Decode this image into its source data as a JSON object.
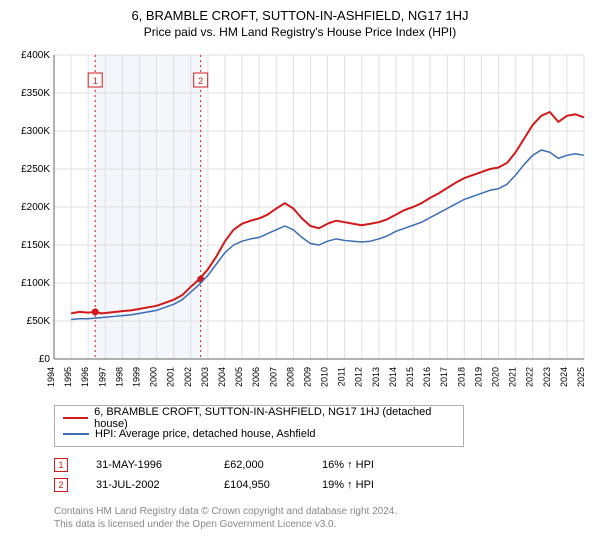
{
  "title": "6, BRAMBLE CROFT, SUTTON-IN-ASHFIELD, NG17 1HJ",
  "subtitle": "Price paid vs. HM Land Registry's House Price Index (HPI)",
  "chart": {
    "type": "line",
    "background_color": "#ffffff",
    "grid_color": "#e0e0e0",
    "axis_color": "#666666",
    "band_fill": "#f3f6fb",
    "ylabel_prefix": "£",
    "ylabel_suffix": "K",
    "ylim": [
      0,
      400
    ],
    "ytick_step": 50,
    "x_start": 1994,
    "x_end": 2025,
    "xtick_step": 1,
    "xtick_fontsize": 9,
    "ytick_fontsize": 10,
    "series": [
      {
        "name": "property",
        "label": "6, BRAMBLE CROFT, SUTTON-IN-ASHFIELD, NG17 1HJ (detached house)",
        "color": "#d11919",
        "width": 2,
        "points": [
          [
            1995.0,
            60
          ],
          [
            1995.5,
            62
          ],
          [
            1996.0,
            61
          ],
          [
            1996.4,
            62
          ],
          [
            1996.8,
            60
          ],
          [
            1997.2,
            61
          ],
          [
            1997.6,
            62
          ],
          [
            1998.0,
            63
          ],
          [
            1998.5,
            64
          ],
          [
            1999.0,
            66
          ],
          [
            1999.5,
            68
          ],
          [
            2000.0,
            70
          ],
          [
            2000.5,
            74
          ],
          [
            2001.0,
            78
          ],
          [
            2001.5,
            84
          ],
          [
            2002.0,
            95
          ],
          [
            2002.5,
            105
          ],
          [
            2003.0,
            118
          ],
          [
            2003.5,
            135
          ],
          [
            2004.0,
            155
          ],
          [
            2004.5,
            170
          ],
          [
            2005.0,
            178
          ],
          [
            2005.5,
            182
          ],
          [
            2006.0,
            185
          ],
          [
            2006.5,
            190
          ],
          [
            2007.0,
            198
          ],
          [
            2007.5,
            205
          ],
          [
            2008.0,
            198
          ],
          [
            2008.5,
            185
          ],
          [
            2009.0,
            175
          ],
          [
            2009.5,
            172
          ],
          [
            2010.0,
            178
          ],
          [
            2010.5,
            182
          ],
          [
            2011.0,
            180
          ],
          [
            2011.5,
            178
          ],
          [
            2012.0,
            176
          ],
          [
            2012.5,
            178
          ],
          [
            2013.0,
            180
          ],
          [
            2013.5,
            184
          ],
          [
            2014.0,
            190
          ],
          [
            2014.5,
            196
          ],
          [
            2015.0,
            200
          ],
          [
            2015.5,
            205
          ],
          [
            2016.0,
            212
          ],
          [
            2016.5,
            218
          ],
          [
            2017.0,
            225
          ],
          [
            2017.5,
            232
          ],
          [
            2018.0,
            238
          ],
          [
            2018.5,
            242
          ],
          [
            2019.0,
            246
          ],
          [
            2019.5,
            250
          ],
          [
            2020.0,
            252
          ],
          [
            2020.5,
            258
          ],
          [
            2021.0,
            272
          ],
          [
            2021.5,
            290
          ],
          [
            2022.0,
            308
          ],
          [
            2022.5,
            320
          ],
          [
            2023.0,
            325
          ],
          [
            2023.5,
            312
          ],
          [
            2024.0,
            320
          ],
          [
            2024.5,
            322
          ],
          [
            2025.0,
            318
          ]
        ]
      },
      {
        "name": "hpi",
        "label": "HPI: Average price, detached house, Ashfield",
        "color": "#3b6db5",
        "width": 1.5,
        "points": [
          [
            1995.0,
            52
          ],
          [
            1995.5,
            53
          ],
          [
            1996.0,
            53
          ],
          [
            1996.5,
            54
          ],
          [
            1997.0,
            55
          ],
          [
            1997.5,
            56
          ],
          [
            1998.0,
            57
          ],
          [
            1998.5,
            58
          ],
          [
            1999.0,
            60
          ],
          [
            1999.5,
            62
          ],
          [
            2000.0,
            64
          ],
          [
            2000.5,
            68
          ],
          [
            2001.0,
            72
          ],
          [
            2001.5,
            78
          ],
          [
            2002.0,
            88
          ],
          [
            2002.5,
            98
          ],
          [
            2003.0,
            110
          ],
          [
            2003.5,
            125
          ],
          [
            2004.0,
            140
          ],
          [
            2004.5,
            150
          ],
          [
            2005.0,
            155
          ],
          [
            2005.5,
            158
          ],
          [
            2006.0,
            160
          ],
          [
            2006.5,
            165
          ],
          [
            2007.0,
            170
          ],
          [
            2007.5,
            175
          ],
          [
            2008.0,
            170
          ],
          [
            2008.5,
            160
          ],
          [
            2009.0,
            152
          ],
          [
            2009.5,
            150
          ],
          [
            2010.0,
            155
          ],
          [
            2010.5,
            158
          ],
          [
            2011.0,
            156
          ],
          [
            2011.5,
            155
          ],
          [
            2012.0,
            154
          ],
          [
            2012.5,
            155
          ],
          [
            2013.0,
            158
          ],
          [
            2013.5,
            162
          ],
          [
            2014.0,
            168
          ],
          [
            2014.5,
            172
          ],
          [
            2015.0,
            176
          ],
          [
            2015.5,
            180
          ],
          [
            2016.0,
            186
          ],
          [
            2016.5,
            192
          ],
          [
            2017.0,
            198
          ],
          [
            2017.5,
            204
          ],
          [
            2018.0,
            210
          ],
          [
            2018.5,
            214
          ],
          [
            2019.0,
            218
          ],
          [
            2019.5,
            222
          ],
          [
            2020.0,
            224
          ],
          [
            2020.5,
            230
          ],
          [
            2021.0,
            242
          ],
          [
            2021.5,
            256
          ],
          [
            2022.0,
            268
          ],
          [
            2022.5,
            275
          ],
          [
            2023.0,
            272
          ],
          [
            2023.5,
            264
          ],
          [
            2024.0,
            268
          ],
          [
            2024.5,
            270
          ],
          [
            2025.0,
            268
          ]
        ]
      }
    ],
    "markers": [
      {
        "n": "1",
        "year": 1996.41,
        "date": "31-MAY-1996",
        "price": "£62,000",
        "hpi_delta": "16% ↑ HPI",
        "color": "#d11919",
        "dot_y": 62
      },
      {
        "n": "2",
        "year": 2002.58,
        "date": "31-JUL-2002",
        "price": "£104,950",
        "hpi_delta": "19% ↑ HPI",
        "color": "#d11919",
        "dot_y": 105
      }
    ]
  },
  "footer_line1": "Contains HM Land Registry data © Crown copyright and database right 2024.",
  "footer_line2": "This data is licensed under the Open Government Licence v3.0."
}
